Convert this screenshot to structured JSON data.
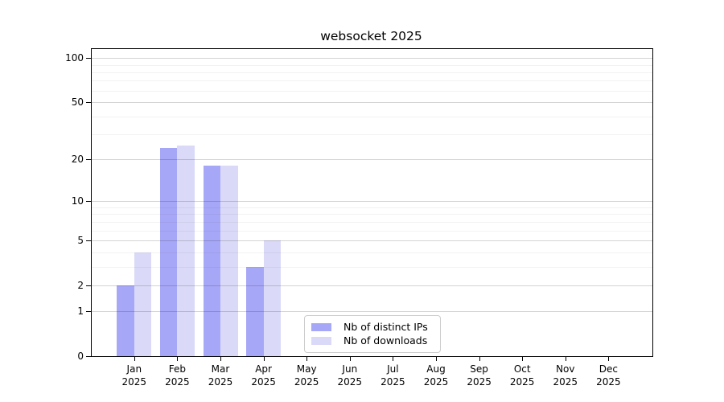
{
  "title": "websocket 2025",
  "chart_data": {
    "type": "bar",
    "title": "websocket 2025",
    "categories": [
      "Jan",
      "Feb",
      "Mar",
      "Apr",
      "May",
      "Jun",
      "Jul",
      "Aug",
      "Sep",
      "Oct",
      "Nov",
      "Dec"
    ],
    "x_tick_second_line": "2025",
    "series": [
      {
        "name": "Nb of distinct IPs",
        "color": "#a7a7f7",
        "values": [
          2,
          24,
          18,
          3,
          0,
          0,
          0,
          0,
          0,
          0,
          0,
          0
        ]
      },
      {
        "name": "Nb of downloads",
        "color": "#dadaf8",
        "values": [
          4,
          25,
          18,
          5,
          0,
          0,
          0,
          0,
          0,
          0,
          0,
          0
        ]
      }
    ],
    "yscale": "symlog",
    "ylim": [
      0,
      115
    ],
    "y_major_ticks": [
      0,
      1,
      2,
      5,
      10,
      20,
      50,
      100
    ],
    "y_minor_ticks": [
      3,
      4,
      6,
      7,
      8,
      9,
      30,
      40,
      60,
      70,
      80,
      90
    ],
    "grid": "horizontal",
    "grid_major_color": "#cccccc",
    "grid_minor_color": "#efefef",
    "axis_color": "#000000",
    "background_color": "#ffffff",
    "legend_position": "inside-bottom-center"
  }
}
